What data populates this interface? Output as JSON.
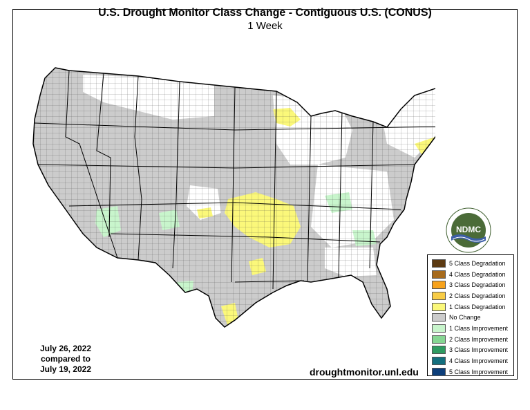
{
  "header": {
    "title": "U.S. Drought Monitor Class Change - Contiguous U.S. (CONUS)",
    "subtitle": "1 Week"
  },
  "dates": {
    "line1": "July 26, 2022",
    "line2": "compared to",
    "line3": "July 19, 2022"
  },
  "footer": {
    "website": "droughtmonitor.unl.edu"
  },
  "logo": {
    "text": "NDMC",
    "ring_text": "NATIONAL DROUGHT MITIGATION CENTER · UNIVERSITY OF NEBRASKA"
  },
  "legend": {
    "items": [
      {
        "label": "5 Class Degradation",
        "color": "#5c3a12"
      },
      {
        "label": "4 Class Degradation",
        "color": "#a66a1c"
      },
      {
        "label": "3 Class Degradation",
        "color": "#f7a21b"
      },
      {
        "label": "2 Class Degradation",
        "color": "#f8cc45"
      },
      {
        "label": "1 Class Degradation",
        "color": "#fbf87a"
      },
      {
        "label": "No Change",
        "color": "#cccccc"
      },
      {
        "label": "1 Class Improvement",
        "color": "#c8f5cc"
      },
      {
        "label": "2 Class Improvement",
        "color": "#86d693"
      },
      {
        "label": "3 Class Improvement",
        "color": "#2e9b61"
      },
      {
        "label": "4 Class Improvement",
        "color": "#136f7e"
      },
      {
        "label": "5 Class Improvement",
        "color": "#0c3e7a"
      }
    ]
  },
  "map_colors": {
    "no_change": "#cccccc",
    "degradation_1": "#fbf87a",
    "improvement_1": "#c8f5cc",
    "background": "#ffffff",
    "boundary": "#000000"
  }
}
